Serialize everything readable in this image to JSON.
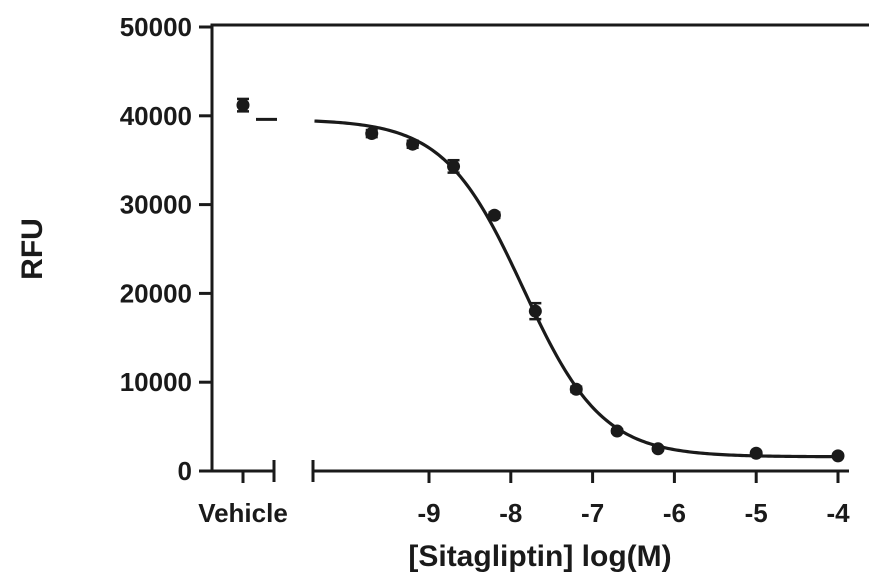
{
  "chart_data": {
    "type": "scatter",
    "title": "",
    "xlabel": "[Sitagliptin] log(M)",
    "ylabel": "RFU",
    "ylim": [
      0,
      50000
    ],
    "xlim": [
      -10.4,
      -3.9
    ],
    "grid": false,
    "y_ticks": [
      0,
      10000,
      20000,
      30000,
      40000,
      50000
    ],
    "y_tick_labels": [
      "0",
      "10000",
      "20000",
      "30000",
      "40000",
      "50000"
    ],
    "x_ticks": [
      -9,
      -8,
      -7,
      -6,
      -5,
      -4
    ],
    "x_tick_labels": [
      "-9",
      "-8",
      "-7",
      "-6",
      "-5",
      "-4"
    ],
    "vehicle": {
      "label": "Vehicle",
      "value": 41200,
      "error": 700,
      "fit_level": 39600
    },
    "series": [
      {
        "points": [
          {
            "x": -9.7,
            "y": 38000,
            "err": 400
          },
          {
            "x": -9.2,
            "y": 36800,
            "err": 400
          },
          {
            "x": -8.7,
            "y": 34300,
            "err": 700
          },
          {
            "x": -8.2,
            "y": 28800,
            "err": 300
          },
          {
            "x": -7.7,
            "y": 18000,
            "err": 900
          },
          {
            "x": -7.2,
            "y": 9200,
            "err": 300
          },
          {
            "x": -6.7,
            "y": 4500,
            "err": 200
          },
          {
            "x": -6.2,
            "y": 2500,
            "err": 200
          },
          {
            "x": -5.0,
            "y": 2000,
            "err": 150
          },
          {
            "x": -4.0,
            "y": 1700,
            "err": 150
          }
        ],
        "fit": {
          "model": "four-parameter logistic",
          "top": 39600,
          "bottom": 1600,
          "logIC50": -7.85,
          "hill": -0.9,
          "x_range": [
            -10.4,
            -4.0
          ]
        }
      }
    ]
  }
}
